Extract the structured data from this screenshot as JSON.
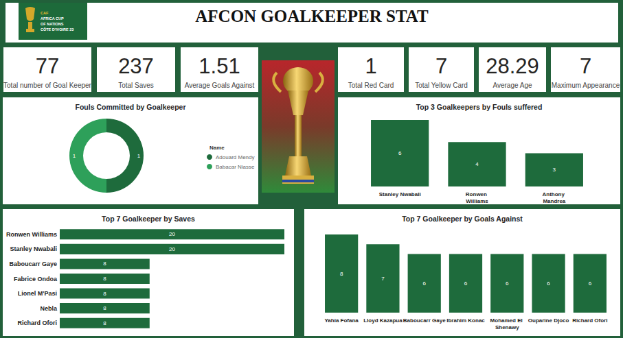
{
  "title": "AFCON GOALKEEPER STAT",
  "logo": [
    "CAF",
    "AFRICA CUP",
    "OF NATIONS",
    "CÔTE D'IVOIRE 23"
  ],
  "kpis": [
    {
      "value": 77,
      "label": "Total number of Goal Keeper"
    },
    {
      "value": 237,
      "label": "Total Saves"
    },
    {
      "value": 1.51,
      "label": "Average Goals Against"
    },
    {
      "value": 1,
      "label": "Total Red Card"
    },
    {
      "value": 7,
      "label": "Total Yellow Card"
    },
    {
      "value": 28.29,
      "label": "Average Age"
    },
    {
      "value": 7,
      "label": "Maximum Appearance"
    }
  ],
  "chart_data": [
    {
      "type": "pie",
      "title": "Fouls Committed by Goalkeeper",
      "categories": [
        "Adouard Mendy",
        "Babacar Niasse"
      ],
      "values": [
        1,
        1
      ],
      "colors": [
        "#1e6b3c",
        "#2ea05a"
      ],
      "data_labels": true,
      "legend": "right",
      "legend_title": "Name"
    },
    {
      "type": "bar",
      "title": "Top 3 Goalkeepers by Fouls suffered",
      "categories": [
        "Stanley Nwabali",
        "Ronwen Williams",
        "Anthony Mandrea"
      ],
      "values": [
        6,
        4,
        3
      ],
      "color": "#1e6b3c",
      "ylim": [
        0,
        6
      ],
      "data_labels": true,
      "tick_labels": "x"
    },
    {
      "type": "bar",
      "title": "Top 7 Goalkeeper by Saves",
      "orientation": "horizontal",
      "categories": [
        "Ronwen Williams",
        "Stanley Nwabali",
        "Baboucarr Gaye",
        "Fabrice Ondoa",
        "Lionel M'Pasi",
        "Nebla",
        "Richard Ofori"
      ],
      "values": [
        20,
        20,
        8,
        8,
        8,
        8,
        8
      ],
      "color": "#1e6b3c",
      "xlim": [
        0,
        20
      ],
      "data_labels": true,
      "tick_labels": "y"
    },
    {
      "type": "bar",
      "title": "Top 7 Goalkeeper by Goals Against",
      "categories": [
        "Yahia Fofana",
        "Lloyd Kazapua",
        "Baboucarr Gaye",
        "Ibrahim Konac",
        "Mohamed El Shenawy",
        "Ouparine Djoco",
        "Richard Ofori"
      ],
      "values": [
        8,
        7,
        6,
        6,
        6,
        6,
        6
      ],
      "color": "#1e6b3c",
      "ylim": [
        0,
        8
      ],
      "data_labels": true,
      "tick_labels": "x"
    }
  ]
}
